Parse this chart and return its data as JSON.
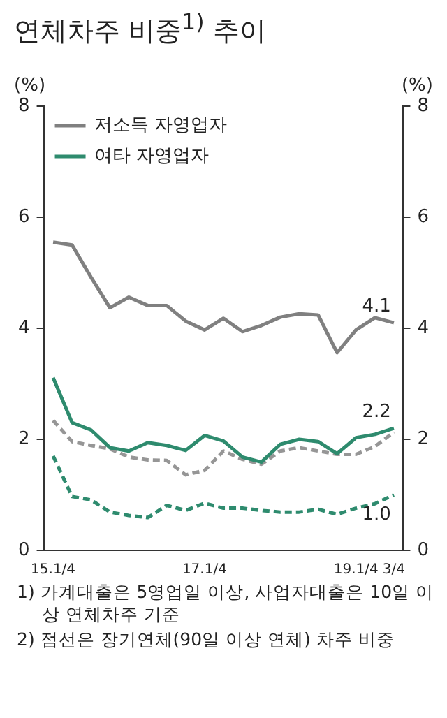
{
  "chart_data": {
    "type": "line",
    "title": "연체차주 비중$^{1)}$ 추이",
    "ylabel": "(%)",
    "y2label": "(%)",
    "categories": [
      "15.1/4",
      null,
      null,
      null,
      null,
      null,
      null,
      null,
      "17.1/4",
      null,
      null,
      null,
      null,
      null,
      null,
      null,
      "19.1/4",
      null,
      "3/4"
    ],
    "series": [
      {
        "name": "저소득 자영업자",
        "color": "#808080",
        "line_style": "solid",
        "values": [
          5.55,
          5.5,
          4.92,
          4.37,
          4.56,
          4.41,
          4.41,
          4.13,
          3.97,
          4.18,
          3.94,
          4.05,
          4.2,
          4.26,
          4.24,
          3.56,
          3.97,
          4.19,
          4.1
        ],
        "value_labels": [
          null,
          null,
          null,
          null,
          null,
          null,
          null,
          null,
          null,
          null,
          null,
          null,
          null,
          null,
          null,
          null,
          null,
          null,
          "4.1"
        ]
      },
      {
        "name": "여타 자영업자",
        "color": "#2e8b6e",
        "line_style": "solid",
        "values": [
          3.11,
          2.3,
          2.17,
          1.85,
          1.79,
          1.94,
          1.89,
          1.8,
          2.07,
          1.97,
          1.68,
          1.59,
          1.91,
          2.0,
          1.96,
          1.74,
          2.03,
          2.09,
          2.2
        ],
        "value_labels": [
          null,
          null,
          null,
          null,
          null,
          null,
          null,
          null,
          null,
          null,
          null,
          null,
          null,
          null,
          null,
          null,
          null,
          null,
          "2.2"
        ]
      },
      {
        "color": "#969696",
        "line_style": "dashed",
        "values": [
          2.34,
          1.96,
          1.89,
          1.83,
          1.68,
          1.63,
          1.62,
          1.36,
          1.44,
          1.79,
          1.64,
          1.55,
          1.79,
          1.85,
          1.79,
          1.73,
          1.73,
          1.87,
          2.13
        ]
      },
      {
        "color": "#2e8b6e",
        "line_style": "dashed",
        "values": [
          1.7,
          0.97,
          0.91,
          0.69,
          0.63,
          0.59,
          0.81,
          0.72,
          0.85,
          0.76,
          0.76,
          0.72,
          0.69,
          0.69,
          0.74,
          0.65,
          0.76,
          0.84,
          1.0
        ],
        "value_labels": [
          null,
          null,
          null,
          null,
          null,
          null,
          null,
          null,
          null,
          null,
          null,
          null,
          null,
          null,
          null,
          null,
          null,
          null,
          "1.0"
        ]
      }
    ],
    "ylim": [
      0,
      8
    ],
    "yticks": [
      0,
      2,
      4,
      6,
      8
    ],
    "y2lim": [
      0,
      8
    ],
    "y2ticks": [
      0,
      2,
      4,
      6,
      8
    ],
    "grid": false,
    "legend": "top left",
    "marker": "none",
    "annotations": [
      "1) 가계대출은 5영업일 이상, 사업자대출은 10일 이상 연체차주 기준",
      "2) 점선은 장기연체(90일 이상 연체) 차주 비중"
    ]
  }
}
